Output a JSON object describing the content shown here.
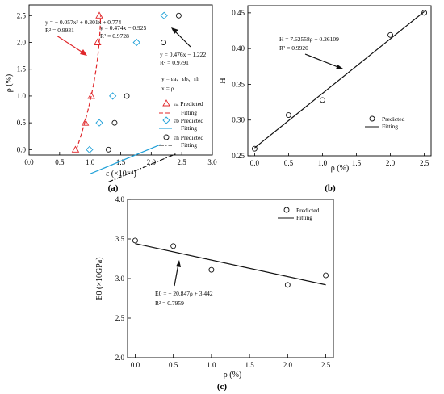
{
  "colors": {
    "red": "#e0262a",
    "blue": "#1fa0d8",
    "black": "#111111"
  },
  "chart_data": [
    {
      "type": "scatter",
      "panel": "(a)",
      "xlabel": "ε (×10⁻⁴)",
      "ylabel": "ρ (%)",
      "xlim": [
        0,
        3.0
      ],
      "ylim": [
        -0.1,
        2.7
      ],
      "xticks": [
        "0.0",
        "0.5",
        "1.0",
        "1.5",
        "2.0",
        "2.5",
        "3.0"
      ],
      "yticks": [
        "0.0",
        "0.5",
        "1.0",
        "1.5",
        "2.0",
        "2.5"
      ],
      "legend_position": "right",
      "series": [
        {
          "name": "εa Predicted",
          "marker": "triangle",
          "color": "#e0262a",
          "points": [
            [
              0.76,
              0.0
            ],
            [
              0.92,
              0.5
            ],
            [
              1.02,
              1.0
            ],
            [
              1.12,
              2.0
            ],
            [
              1.15,
              2.5
            ]
          ]
        },
        {
          "name": "Fitting",
          "kind": "quadratic-fit",
          "style": "dashed",
          "color": "#e0262a",
          "coef": [
            -0.057,
            0.301,
            0.774
          ],
          "yrange": [
            0.0,
            2.5
          ]
        },
        {
          "name": "εb Predicted",
          "marker": "diamond",
          "color": "#1fa0d8",
          "points": [
            [
              0.99,
              0.0
            ],
            [
              1.15,
              0.5
            ],
            [
              1.37,
              1.0
            ],
            [
              1.76,
              2.0
            ],
            [
              2.21,
              2.5
            ]
          ]
        },
        {
          "name": "Fitting",
          "kind": "linear-fit",
          "style": "solid",
          "color": "#1fa0d8",
          "slope": 0.474,
          "intercept": -0.925,
          "xrange": [
            1.0,
            2.15
          ]
        },
        {
          "name": "εh Predicted",
          "marker": "circle",
          "color": "#111111",
          "points": [
            [
              1.3,
              0.0
            ],
            [
              1.4,
              0.5
            ],
            [
              1.6,
              1.0
            ],
            [
              2.2,
              2.0
            ],
            [
              2.45,
              2.5
            ]
          ]
        },
        {
          "name": "Fitting",
          "kind": "linear-fit",
          "style": "dashdot",
          "color": "#111111",
          "slope": 0.476,
          "intercept": -1.222,
          "xrange": [
            1.3,
            2.4
          ]
        }
      ],
      "annotations": [
        {
          "lines": [
            "y = − 0.057x² + 0.301x + 0.774",
            "R² = 0.9931"
          ]
        },
        {
          "lines": [
            "y = 0.474x − 0.925",
            "R² = 0.9728"
          ]
        },
        {
          "lines": [
            "y = 0.476x − 1.222",
            "R² = 0.9791"
          ]
        },
        {
          "lines": [
            "y = εa、εb、εh",
            "x = ρ"
          ]
        }
      ]
    },
    {
      "type": "scatter",
      "panel": "(b)",
      "xlabel": "ρ (%)",
      "ylabel": "H",
      "xlim": [
        -0.1,
        2.6
      ],
      "ylim": [
        0.25,
        0.46
      ],
      "xticks": [
        "0.0",
        "0.5",
        "1.0",
        "1.5",
        "2.0",
        "2.5"
      ],
      "yticks": [
        "0.25",
        "0.30",
        "0.35",
        "0.40",
        "0.45"
      ],
      "legend_position": "bottom-right",
      "series": [
        {
          "name": "Predicted",
          "marker": "circle",
          "points": [
            [
              0.0,
              0.26
            ],
            [
              0.5,
              0.307
            ],
            [
              1.0,
              0.328
            ],
            [
              2.0,
              0.419
            ],
            [
              2.5,
              0.45
            ]
          ]
        },
        {
          "name": "Fitting",
          "kind": "linear-fit",
          "slope": 0.07626,
          "intercept": 0.26109,
          "xrange": [
            0.0,
            2.5
          ]
        }
      ],
      "annotations": [
        {
          "lines": [
            "H = 7.62558ρ + 0.26109",
            "R² = 0.9920"
          ]
        }
      ]
    },
    {
      "type": "scatter",
      "panel": "(c)",
      "xlabel": "ρ (%)",
      "ylabel": "E0 (×10GPa)",
      "xlim": [
        -0.1,
        2.6
      ],
      "ylim": [
        2.0,
        4.0
      ],
      "xticks": [
        "0.0",
        "0.5",
        "1.0",
        "1.5",
        "2.0",
        "2.5"
      ],
      "yticks": [
        "2.0",
        "2.5",
        "3.0",
        "3.5",
        "4.0"
      ],
      "legend_position": "top-right",
      "series": [
        {
          "name": "Predicted",
          "marker": "circle",
          "points": [
            [
              0.0,
              3.48
            ],
            [
              0.5,
              3.41
            ],
            [
              1.0,
              3.11
            ],
            [
              2.0,
              2.92
            ],
            [
              2.5,
              3.04
            ]
          ]
        },
        {
          "name": "Fitting",
          "kind": "linear-fit",
          "slope": -0.20847,
          "intercept": 3.442,
          "xrange": [
            0.0,
            2.5
          ]
        }
      ],
      "annotations": [
        {
          "lines": [
            "E0 = − 20.847ρ + 3.442",
            "R² = 0.7959"
          ]
        }
      ]
    }
  ]
}
